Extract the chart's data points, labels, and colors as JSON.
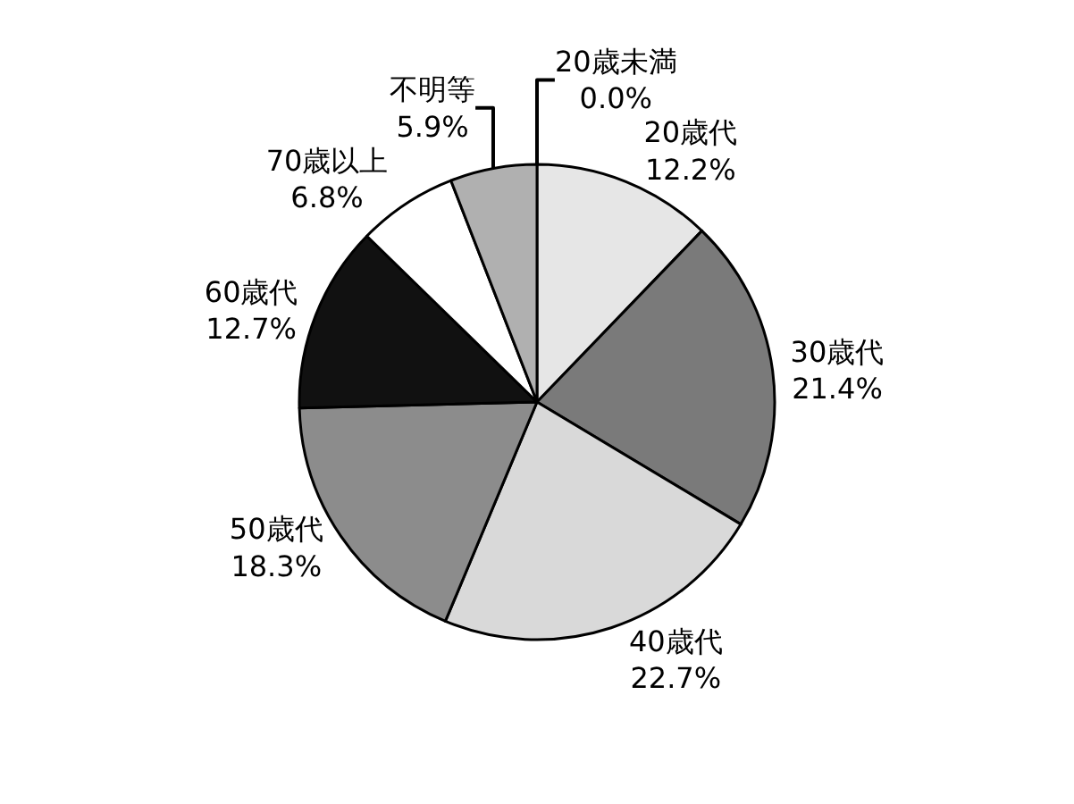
{
  "chart_data": {
    "type": "pie",
    "categories": [
      "20歳未満",
      "20歳代",
      "30歳代",
      "40歳代",
      "50歳代",
      "60歳代",
      "70歳以上",
      "不明等"
    ],
    "values": [
      0.0,
      12.2,
      21.4,
      22.7,
      18.3,
      12.7,
      6.8,
      5.9
    ],
    "value_labels": [
      "0.0%",
      "12.2%",
      "21.4%",
      "22.7%",
      "18.3%",
      "12.7%",
      "6.8%",
      "5.9%"
    ],
    "colors": [
      "#ffffff",
      "#e6e6e6",
      "#7a7a7a",
      "#d9d9d9",
      "#8c8c8c",
      "#111111",
      "#ffffff",
      "#b0b0b0"
    ],
    "legend": false
  }
}
